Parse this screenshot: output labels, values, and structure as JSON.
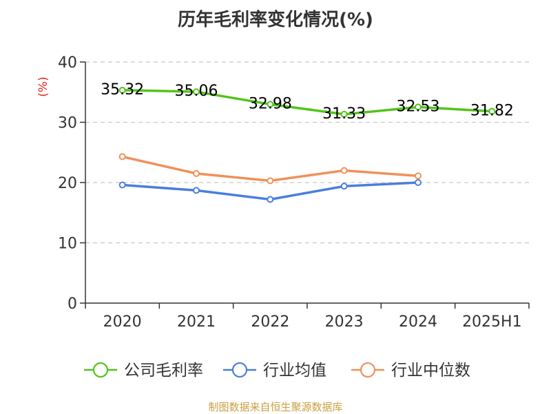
{
  "chart_data": {
    "type": "line",
    "title": "历年毛利率变化情况(%)",
    "ylabel": "(%)",
    "categories": [
      "2020",
      "2021",
      "2022",
      "2023",
      "2024",
      "2025H1"
    ],
    "ylim": [
      0,
      40
    ],
    "yticks": [
      0,
      10,
      20,
      30,
      40
    ],
    "grid": true,
    "legend_position": "bottom",
    "series": [
      {
        "name": "公司毛利率",
        "color": "#52c41a",
        "values": [
          35.32,
          35.06,
          32.98,
          31.33,
          32.53,
          31.82
        ],
        "labels": [
          "35.32",
          "35.06",
          "32.98",
          "31.33",
          "32.53",
          "31.82"
        ]
      },
      {
        "name": "行业均值",
        "color": "#4a7fdb",
        "values": [
          19.6,
          18.7,
          17.2,
          19.4,
          20.0,
          null
        ]
      },
      {
        "name": "行业中位数",
        "color": "#f0905a",
        "values": [
          24.3,
          21.5,
          20.3,
          22.0,
          21.1,
          null
        ]
      }
    ],
    "source": "制图数据来自恒生聚源数据库",
    "source_color": "#c8a040"
  }
}
